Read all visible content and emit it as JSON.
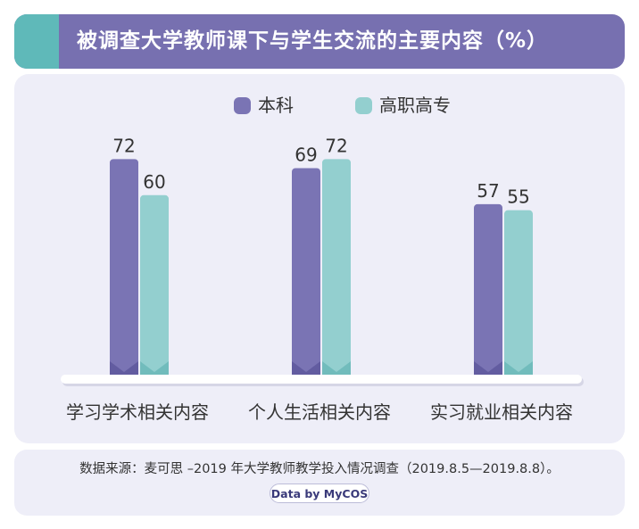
{
  "header": {
    "title": "被调查大学教师课下与学生交流的主要内容（%）"
  },
  "chart_data": {
    "type": "bar",
    "categories": [
      "学习学术相关内容",
      "个人生活相关内容",
      "实习就业相关内容"
    ],
    "series": [
      {
        "name": "本科",
        "values": [
          72,
          69,
          57
        ],
        "color": "#7a74b4",
        "color_dark": "#625ca0"
      },
      {
        "name": "高职高专",
        "values": [
          60,
          72,
          55
        ],
        "color": "#93cfcf",
        "color_dark": "#71bcbc"
      }
    ],
    "title": "被调查大学教师课下与学生交流的主要内容（%）",
    "ylim": [
      0,
      100
    ],
    "grid": false,
    "legend": "top-center",
    "data_labels": true
  },
  "footer": {
    "source": "数据来源：麦可思 –2019 年大学教师教学投入情况调查（2019.8.5—2019.8.8）。",
    "badge": "Data by MyCOS"
  }
}
